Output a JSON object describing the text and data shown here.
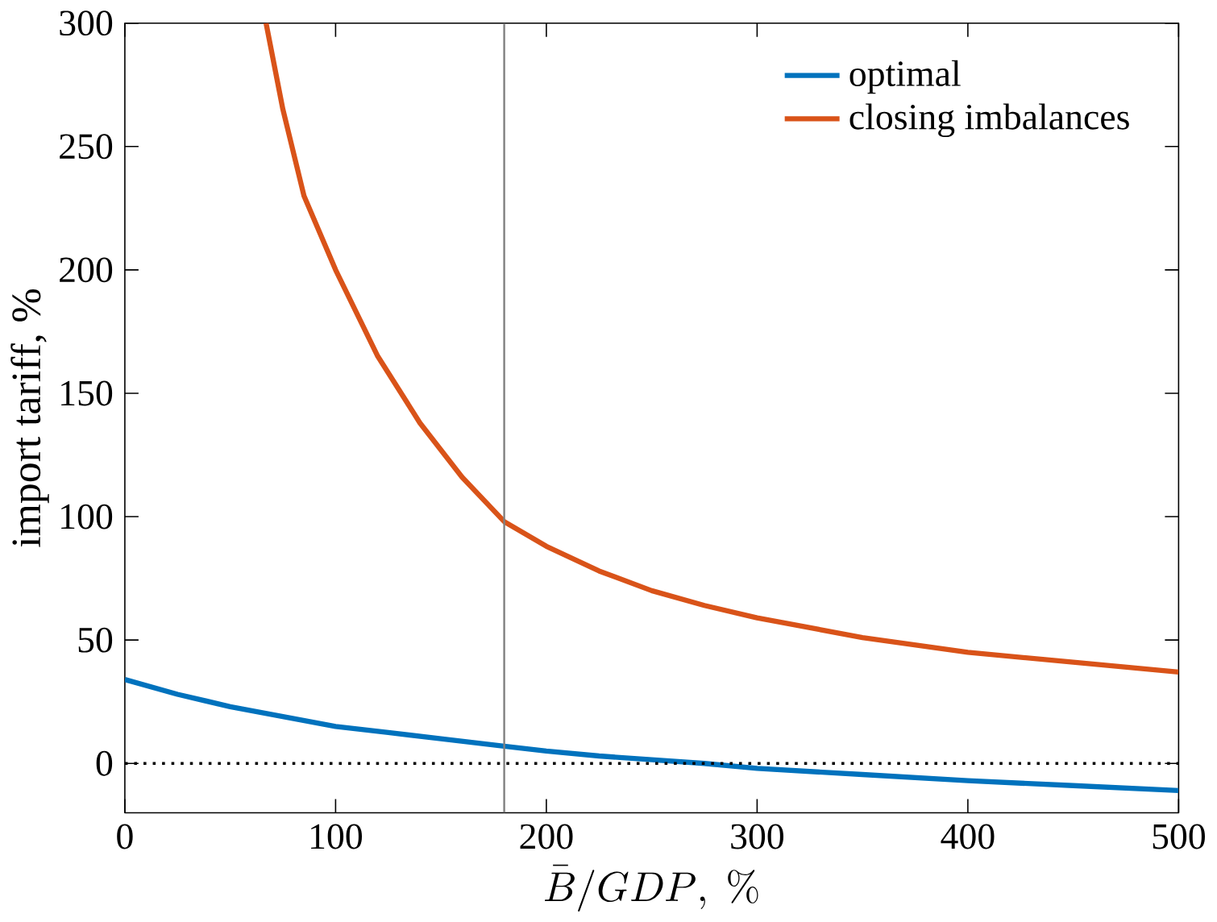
{
  "chart_data": {
    "type": "line",
    "xlabel": "\\bar{B}/GDP,\\ \\%",
    "ylabel": "import tariff, %",
    "xlim": [
      0,
      500
    ],
    "ylim": [
      -20,
      300
    ],
    "xticks": [
      0,
      100,
      200,
      300,
      400,
      500
    ],
    "yticks": [
      0,
      50,
      100,
      150,
      200,
      250,
      300
    ],
    "grid": false,
    "legend": "top right",
    "line_style": "solid",
    "marker": "none",
    "series": [
      {
        "name": "optimal",
        "color": "#0072bd",
        "x": [
          0,
          25,
          50,
          75,
          100,
          125,
          150,
          180,
          200,
          225,
          250,
          275,
          300,
          350,
          400,
          450,
          500
        ],
        "values": [
          34,
          28,
          23,
          19,
          15,
          12.5,
          10,
          7,
          5,
          3,
          1.5,
          0,
          -2,
          -4.5,
          -7,
          -9,
          -11
        ]
      },
      {
        "name": "closing imbalances",
        "color": "#d95319",
        "x": [
          67,
          75,
          85,
          100,
          120,
          140,
          160,
          180,
          200,
          225,
          250,
          275,
          300,
          350,
          400,
          450,
          500
        ],
        "values": [
          300,
          265,
          230,
          200,
          165,
          138,
          116,
          98,
          88,
          78,
          70,
          64,
          59,
          51,
          45,
          41,
          37
        ]
      }
    ],
    "ref_lines": [
      {
        "axis": "x",
        "value": 180,
        "color": "#808080",
        "line_style": "solid"
      },
      {
        "axis": "y",
        "value": 0,
        "color": "#000000",
        "line_style": "dotted"
      }
    ]
  }
}
